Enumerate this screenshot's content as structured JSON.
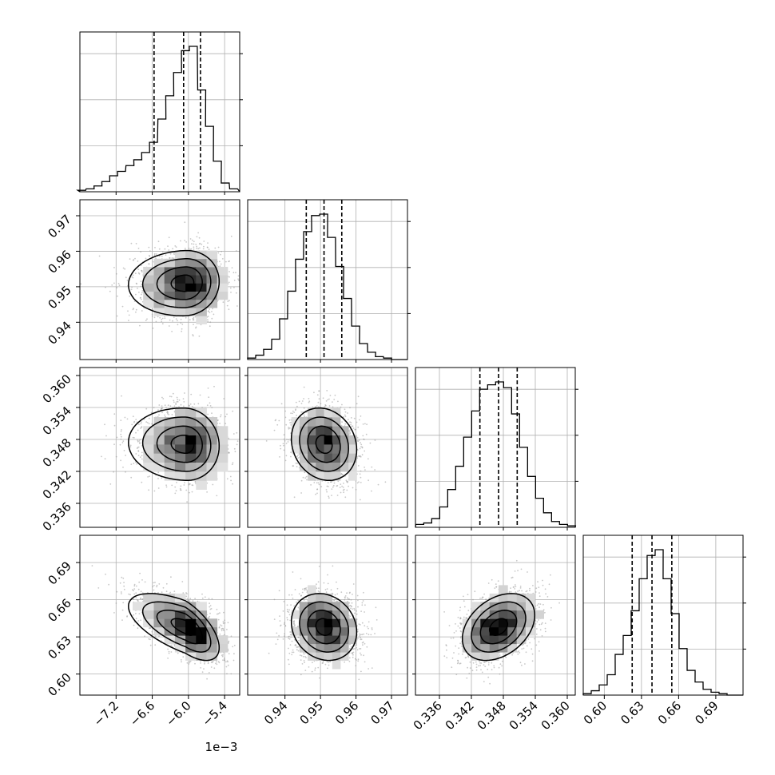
{
  "chart_data": {
    "type": "scatter",
    "title": "",
    "parameters": [
      {
        "name": "",
        "range": [
          -7.8,
          -5.15
        ],
        "ticks": [
          -7.2,
          -6.6,
          -6.0,
          -5.4
        ],
        "tick_labels": [
          "−7.2",
          "−6.6",
          "−6.0",
          "−5.4"
        ],
        "offset_text": "1e−3",
        "quantiles": [
          -6.57,
          -6.08,
          -5.8
        ],
        "hist_x": [
          -7.77,
          -7.63,
          -7.5,
          -7.37,
          -7.24,
          -7.11,
          -6.97,
          -6.84,
          -6.71,
          -6.58,
          -6.44,
          -6.31,
          -6.18,
          -6.05,
          -5.92,
          -5.78,
          -5.65,
          -5.52,
          -5.39,
          -5.25
        ],
        "hist_y": [
          0.01,
          0.02,
          0.04,
          0.07,
          0.11,
          0.14,
          0.18,
          0.22,
          0.27,
          0.34,
          0.5,
          0.66,
          0.82,
          0.97,
          1.0,
          0.7,
          0.45,
          0.21,
          0.06,
          0.02
        ],
        "mean": -6.05,
        "std": 0.35,
        "skew": -0.7
      },
      {
        "name": "",
        "range": [
          0.9295,
          0.9745
        ],
        "ticks": [
          0.94,
          0.95,
          0.96,
          0.97
        ],
        "tick_labels": [
          "0.94",
          "0.95",
          "0.96",
          "0.97"
        ],
        "quantiles": [
          0.946,
          0.951,
          0.956
        ],
        "hist_x": [
          0.9306,
          0.9329,
          0.9351,
          0.9374,
          0.9396,
          0.9419,
          0.9441,
          0.9464,
          0.9486,
          0.9509,
          0.9531,
          0.9554,
          0.9576,
          0.9599,
          0.9621,
          0.9644,
          0.9666,
          0.9689,
          0.9711,
          0.9734
        ],
        "hist_y": [
          0.01,
          0.03,
          0.07,
          0.14,
          0.28,
          0.47,
          0.69,
          0.88,
          0.99,
          1.0,
          0.84,
          0.64,
          0.42,
          0.23,
          0.11,
          0.05,
          0.02,
          0.01,
          0.0,
          0.0
        ],
        "mean": 0.951,
        "std": 0.0046,
        "skew": 0.0
      },
      {
        "name": "",
        "range": [
          0.3315,
          0.3615
        ],
        "ticks": [
          0.336,
          0.342,
          0.348,
          0.354,
          0.36
        ],
        "tick_labels": [
          "0.336",
          "0.342",
          "0.348",
          "0.354",
          "0.360"
        ],
        "quantiles": [
          0.3436,
          0.3471,
          0.3506
        ],
        "hist_x": [
          0.3323,
          0.3338,
          0.3353,
          0.3368,
          0.3383,
          0.3398,
          0.3413,
          0.3428,
          0.3443,
          0.3458,
          0.3473,
          0.3488,
          0.3503,
          0.3518,
          0.3533,
          0.3548,
          0.3563,
          0.3578,
          0.3593,
          0.3608
        ],
        "hist_y": [
          0.02,
          0.03,
          0.06,
          0.14,
          0.26,
          0.42,
          0.62,
          0.8,
          0.95,
          0.98,
          1.0,
          0.96,
          0.78,
          0.55,
          0.35,
          0.2,
          0.1,
          0.04,
          0.02,
          0.01
        ],
        "mean": 0.3471,
        "std": 0.0034,
        "skew": 0.0
      },
      {
        "name": "",
        "range": [
          0.583,
          0.712
        ],
        "ticks": [
          0.6,
          0.63,
          0.66,
          0.69
        ],
        "tick_labels": [
          "0.60",
          "0.63",
          "0.66",
          "0.69"
        ],
        "quantiles": [
          0.6225,
          0.6385,
          0.6545
        ],
        "hist_x": [
          0.5862,
          0.5927,
          0.5991,
          0.6056,
          0.612,
          0.6185,
          0.6249,
          0.6314,
          0.6378,
          0.6443,
          0.6507,
          0.6572,
          0.6636,
          0.6701,
          0.6765,
          0.683,
          0.6894,
          0.6959,
          0.7023,
          0.7088
        ],
        "hist_y": [
          0.01,
          0.03,
          0.07,
          0.14,
          0.28,
          0.41,
          0.58,
          0.8,
          0.96,
          1.0,
          0.8,
          0.56,
          0.32,
          0.17,
          0.09,
          0.04,
          0.02,
          0.01,
          0.0,
          0.0
        ],
        "mean": 0.638,
        "std": 0.0135,
        "skew": 0.0
      }
    ],
    "correlations": [
      {
        "row": 1,
        "col": 0,
        "rho": 0.05
      },
      {
        "row": 2,
        "col": 0,
        "rho": -0.05
      },
      {
        "row": 2,
        "col": 1,
        "rho": -0.15
      },
      {
        "row": 3,
        "col": 0,
        "rho": -0.62
      },
      {
        "row": 3,
        "col": 1,
        "rho": -0.15
      },
      {
        "row": 3,
        "col": 2,
        "rho": 0.35
      }
    ],
    "contour_levels_sigma": [
      0.5,
      1.0,
      1.5,
      2.0
    ],
    "grid": true,
    "colors": {
      "line": "#000000",
      "grid": "#b0b0b0",
      "points": "#9a9a9a"
    }
  }
}
